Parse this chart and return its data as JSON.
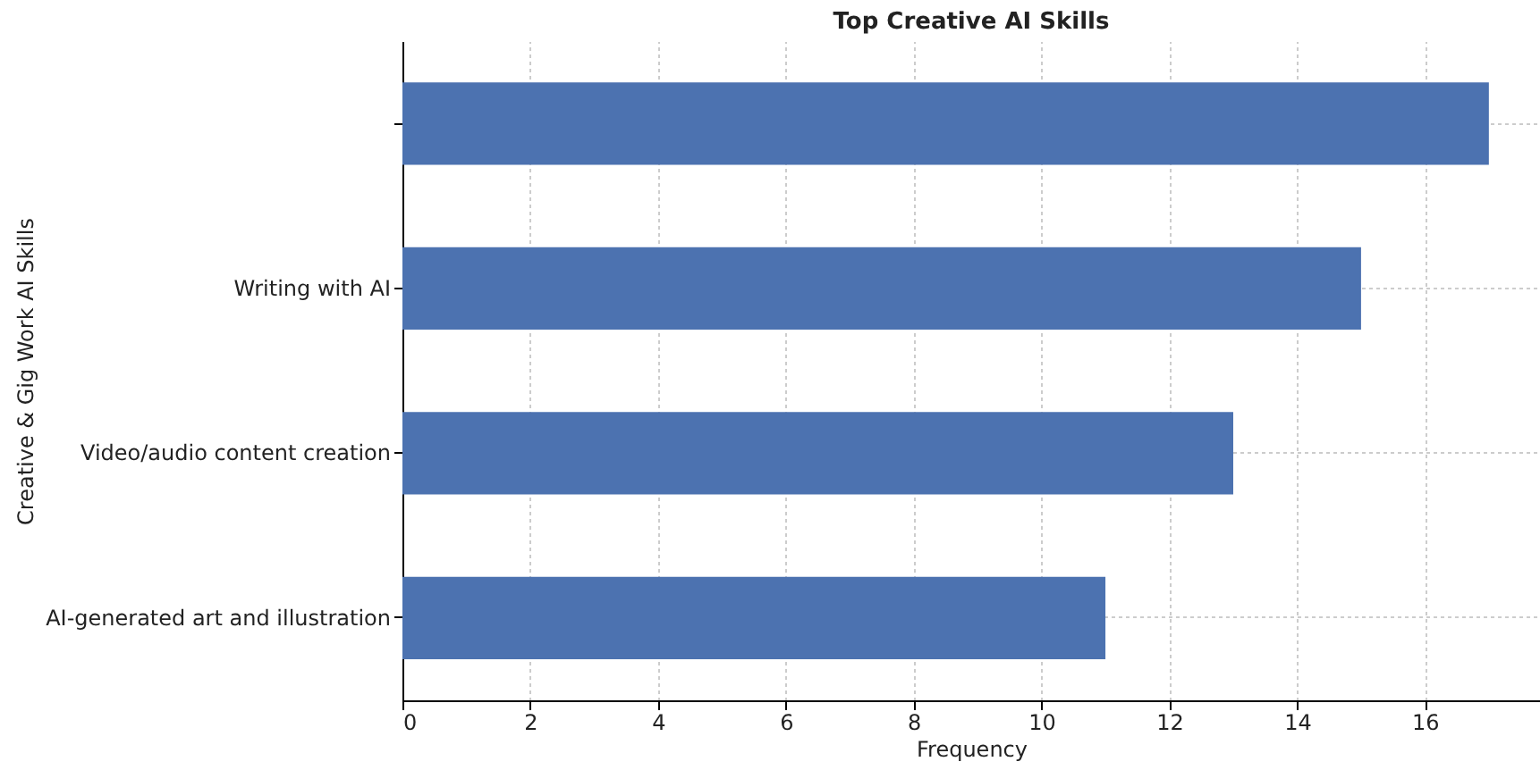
{
  "chart_data": {
    "type": "bar",
    "orientation": "horizontal",
    "title": "Top Creative AI Skills",
    "xlabel": "Frequency",
    "ylabel": "Creative & Gig Work AI Skills",
    "categories": [
      null,
      "Writing with AI",
      "Video/audio content creation",
      "AI-generated art and illustration"
    ],
    "values": [
      17,
      15,
      13,
      11
    ],
    "color": "#4c72b0",
    "xlim": [
      0,
      17.8
    ],
    "xticks": [
      0,
      2,
      4,
      6,
      8,
      10,
      12,
      14,
      16
    ],
    "grid": true
  }
}
